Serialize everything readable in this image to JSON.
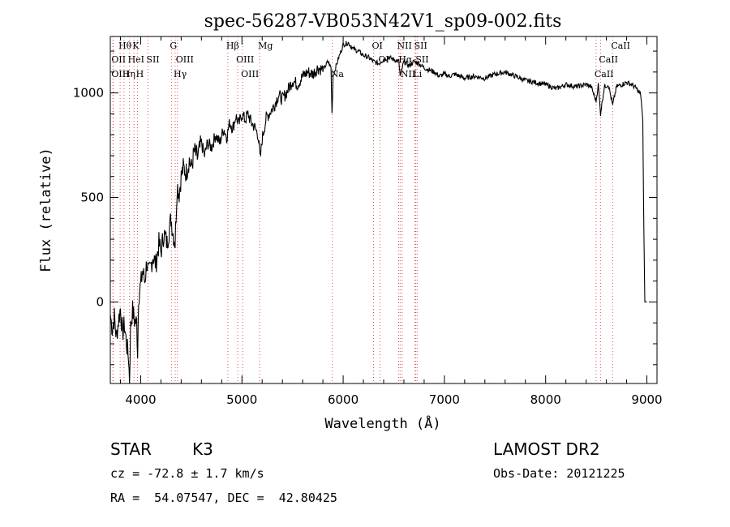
{
  "chart_data": {
    "type": "line",
    "title": "spec-56287-VB053N42V1_sp09-002.fits",
    "xlabel": "Wavelength (Å)",
    "ylabel": "Flux (relative)",
    "xlim": [
      3700,
      9100
    ],
    "ylim": [
      -390,
      1270
    ],
    "xticks": [
      4000,
      5000,
      6000,
      7000,
      8000,
      9000
    ],
    "yticks": [
      0,
      500,
      1000
    ],
    "grid": false,
    "series": [
      {
        "color": "#000000",
        "points": [
          [
            3700,
            -60
          ],
          [
            3720,
            -130
          ],
          [
            3740,
            -70
          ],
          [
            3760,
            -170
          ],
          [
            3780,
            -90
          ],
          [
            3800,
            -30
          ],
          [
            3820,
            -150
          ],
          [
            3840,
            -110
          ],
          [
            3860,
            -200
          ],
          [
            3880,
            -260
          ],
          [
            3890,
            -390
          ],
          [
            3900,
            -120
          ],
          [
            3920,
            -40
          ],
          [
            3940,
            -90
          ],
          [
            3960,
            -100
          ],
          [
            3970,
            -240
          ],
          [
            3980,
            30
          ],
          [
            4000,
            80
          ],
          [
            4020,
            150
          ],
          [
            4040,
            100
          ],
          [
            4060,
            190
          ],
          [
            4080,
            130
          ],
          [
            4100,
            170
          ],
          [
            4120,
            220
          ],
          [
            4150,
            180
          ],
          [
            4180,
            280
          ],
          [
            4200,
            240
          ],
          [
            4230,
            330
          ],
          [
            4260,
            280
          ],
          [
            4300,
            400
          ],
          [
            4320,
            330
          ],
          [
            4340,
            280
          ],
          [
            4360,
            560
          ],
          [
            4380,
            520
          ],
          [
            4400,
            600
          ],
          [
            4420,
            640
          ],
          [
            4450,
            620
          ],
          [
            4480,
            680
          ],
          [
            4500,
            640
          ],
          [
            4530,
            720
          ],
          [
            4560,
            690
          ],
          [
            4600,
            760
          ],
          [
            4630,
            700
          ],
          [
            4660,
            760
          ],
          [
            4700,
            740
          ],
          [
            4740,
            800
          ],
          [
            4780,
            760
          ],
          [
            4820,
            830
          ],
          [
            4850,
            790
          ],
          [
            4880,
            860
          ],
          [
            4910,
            830
          ],
          [
            4940,
            890
          ],
          [
            4970,
            850
          ],
          [
            5000,
            900
          ],
          [
            5030,
            870
          ],
          [
            5060,
            900
          ],
          [
            5090,
            860
          ],
          [
            5120,
            840
          ],
          [
            5160,
            800
          ],
          [
            5180,
            680
          ],
          [
            5200,
            780
          ],
          [
            5240,
            880
          ],
          [
            5280,
            910
          ],
          [
            5320,
            940
          ],
          [
            5360,
            990
          ],
          [
            5400,
            970
          ],
          [
            5450,
            1010
          ],
          [
            5500,
            1060
          ],
          [
            5550,
            1040
          ],
          [
            5600,
            1080
          ],
          [
            5650,
            1100
          ],
          [
            5700,
            1090
          ],
          [
            5750,
            1120
          ],
          [
            5800,
            1110
          ],
          [
            5850,
            1150
          ],
          [
            5880,
            1120
          ],
          [
            5890,
            900
          ],
          [
            5900,
            1080
          ],
          [
            5950,
            1160
          ],
          [
            6000,
            1230
          ],
          [
            6050,
            1240
          ],
          [
            6100,
            1210
          ],
          [
            6150,
            1200
          ],
          [
            6200,
            1180
          ],
          [
            6250,
            1170
          ],
          [
            6300,
            1150
          ],
          [
            6350,
            1140
          ],
          [
            6400,
            1160
          ],
          [
            6450,
            1170
          ],
          [
            6500,
            1160
          ],
          [
            6550,
            1150
          ],
          [
            6563,
            1080
          ],
          [
            6600,
            1150
          ],
          [
            6650,
            1130
          ],
          [
            6700,
            1150
          ],
          [
            6750,
            1140
          ],
          [
            6800,
            1120
          ],
          [
            6850,
            1110
          ],
          [
            6900,
            1100
          ],
          [
            6950,
            1080
          ],
          [
            7000,
            1090
          ],
          [
            7050,
            1080
          ],
          [
            7100,
            1090
          ],
          [
            7150,
            1080
          ],
          [
            7200,
            1070
          ],
          [
            7300,
            1080
          ],
          [
            7400,
            1070
          ],
          [
            7500,
            1090
          ],
          [
            7600,
            1100
          ],
          [
            7650,
            1090
          ],
          [
            7700,
            1080
          ],
          [
            7800,
            1060
          ],
          [
            7900,
            1050
          ],
          [
            8000,
            1040
          ],
          [
            8050,
            1030
          ],
          [
            8100,
            1020
          ],
          [
            8150,
            1030
          ],
          [
            8200,
            1040
          ],
          [
            8300,
            1030
          ],
          [
            8400,
            1040
          ],
          [
            8450,
            1030
          ],
          [
            8498,
            960
          ],
          [
            8520,
            1040
          ],
          [
            8542,
            900
          ],
          [
            8580,
            1030
          ],
          [
            8620,
            1040
          ],
          [
            8662,
            940
          ],
          [
            8700,
            1030
          ],
          [
            8750,
            1040
          ],
          [
            8800,
            1050
          ],
          [
            8850,
            1040
          ],
          [
            8900,
            1020
          ],
          [
            8940,
            990
          ],
          [
            8960,
            870
          ],
          [
            8970,
            350
          ],
          [
            8980,
            0
          ],
          [
            9000,
            0
          ]
        ]
      }
    ],
    "lines": [
      {
        "label": "Hθ",
        "wavelength": 3797,
        "row": 1
      },
      {
        "label": "K",
        "wavelength": 3934,
        "row": 1
      },
      {
        "label": "OII",
        "wavelength": 3727,
        "row": 2
      },
      {
        "label": "HeI",
        "wavelength": 3889,
        "row": 2
      },
      {
        "label": "SII",
        "wavelength": 4072,
        "row": 2
      },
      {
        "label": "OIII",
        "wavelength": 3727,
        "row": 3
      },
      {
        "label": "Hη",
        "wavelength": 3835,
        "row": 3
      },
      {
        "label": "H",
        "wavelength": 3969,
        "row": 3
      },
      {
        "label": "G",
        "wavelength": 4304,
        "row": 1
      },
      {
        "label": "OIII",
        "wavelength": 4363,
        "row": 2
      },
      {
        "label": "Hγ",
        "wavelength": 4341,
        "row": 3
      },
      {
        "label": "Hβ",
        "wavelength": 4861,
        "row": 1
      },
      {
        "label": "OIII",
        "wavelength": 4959,
        "row": 2
      },
      {
        "label": "OIII",
        "wavelength": 5007,
        "row": 3
      },
      {
        "label": "Mg",
        "wavelength": 5175,
        "row": 1
      },
      {
        "label": "Na",
        "wavelength": 5893,
        "row": 3
      },
      {
        "label": "OI",
        "wavelength": 6300,
        "row": 1
      },
      {
        "label": "OI",
        "wavelength": 6364,
        "row": 2
      },
      {
        "label": "NII",
        "wavelength": 6548,
        "row": 1
      },
      {
        "label": "SII",
        "wavelength": 6717,
        "row": 1
      },
      {
        "label": "Hα",
        "wavelength": 6563,
        "row": 2
      },
      {
        "label": "SII",
        "wavelength": 6731,
        "row": 2
      },
      {
        "label": "NII",
        "wavelength": 6583,
        "row": 3
      },
      {
        "label": "Li",
        "wavelength": 6708,
        "row": 3
      },
      {
        "label": "CaII",
        "wavelength": 8662,
        "row": 1
      },
      {
        "label": "CaII",
        "wavelength": 8542,
        "row": 2
      },
      {
        "label": "CaII",
        "wavelength": 8498,
        "row": 3
      }
    ],
    "line_color": "#d93030",
    "dot_color": "#555555"
  },
  "info": {
    "object_class": "STAR",
    "subclass": "K3",
    "survey": "LAMOST DR2",
    "cz": "cz = -72.8 ± 1.7 km/s",
    "obs_date": "Obs-Date: 20121225",
    "radec": "RA =  54.07547, DEC =  42.80425"
  }
}
